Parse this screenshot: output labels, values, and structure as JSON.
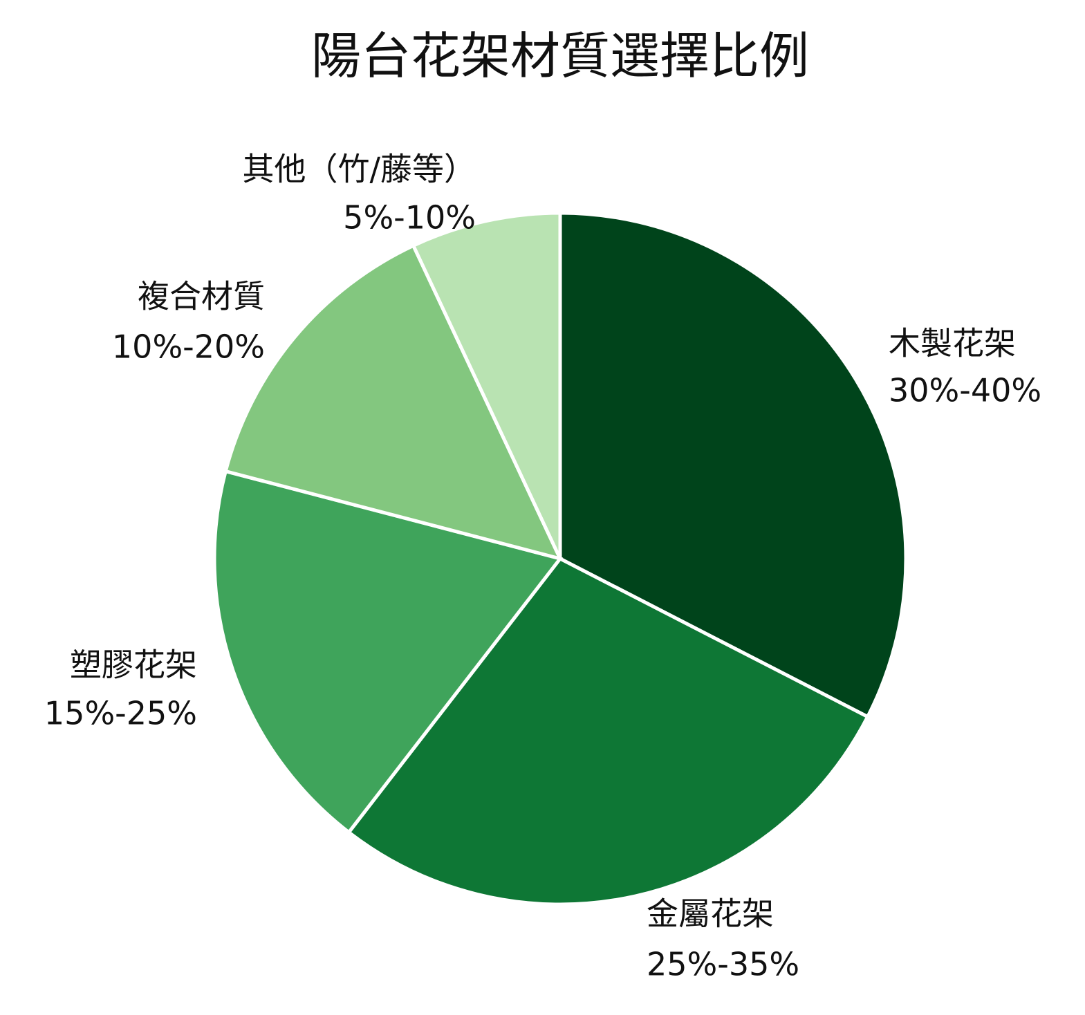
{
  "chart_data": {
    "type": "pie",
    "title": "陽台花架材質選擇比例",
    "start_angle": "12 o'clock",
    "direction": "clockwise",
    "slices": [
      {
        "label": "木製花架",
        "range": "30%-40%",
        "value": 35,
        "color": "#00441b"
      },
      {
        "label": "金屬花架",
        "range": "25%-35%",
        "value": 30,
        "color": "#0e7735"
      },
      {
        "label": "塑膠花架",
        "range": "15%-25%",
        "value": 20,
        "color": "#3fa45b"
      },
      {
        "label": "複合材質",
        "range": "10%-20%",
        "value": 15,
        "color": "#83c77f"
      },
      {
        "label": "其他（竹/藤等）",
        "range": "5%-10%",
        "value": 7.5,
        "color": "#b9e3b2"
      }
    ]
  }
}
